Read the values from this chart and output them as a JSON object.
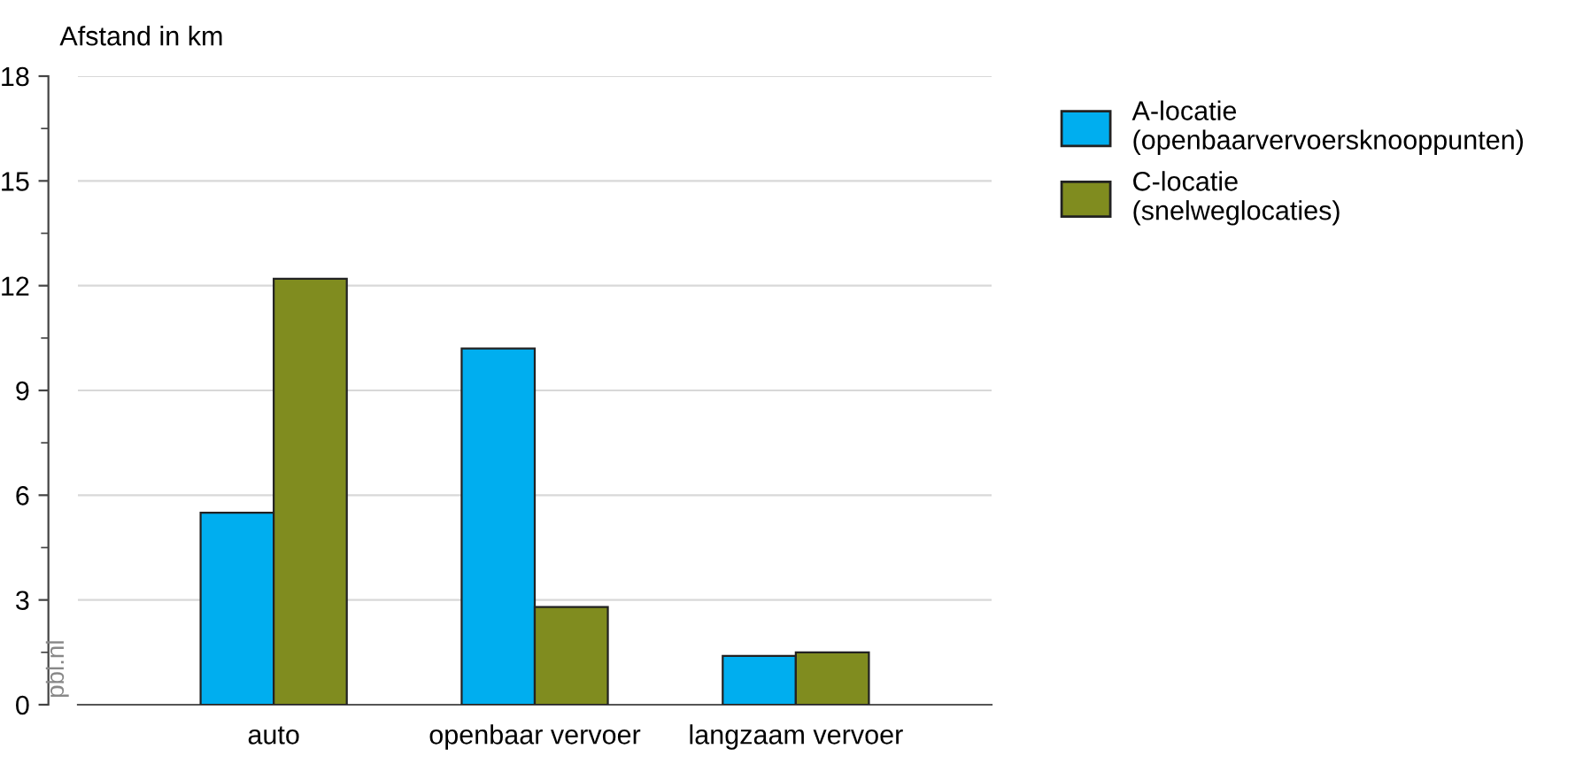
{
  "chart_data": {
    "type": "bar",
    "ylabel": "Afstand in km",
    "categories": [
      "auto",
      "openbaar vervoer",
      "langzaam vervoer"
    ],
    "series": [
      {
        "name": "A-locatie\n(openbaarvervoersknooppunten)",
        "color": "#00aeef",
        "values": [
          5.5,
          10.2,
          1.4
        ]
      },
      {
        "name": "C-locatie\n(snelweglocaties)",
        "color": "#808c1f",
        "values": [
          12.2,
          2.8,
          1.5
        ]
      }
    ],
    "ylim": [
      0,
      18
    ],
    "yticks": [
      0,
      3,
      6,
      9,
      12,
      15,
      18
    ],
    "grid": "y",
    "legend": "right",
    "annotations": [
      "pbl.nl"
    ]
  }
}
